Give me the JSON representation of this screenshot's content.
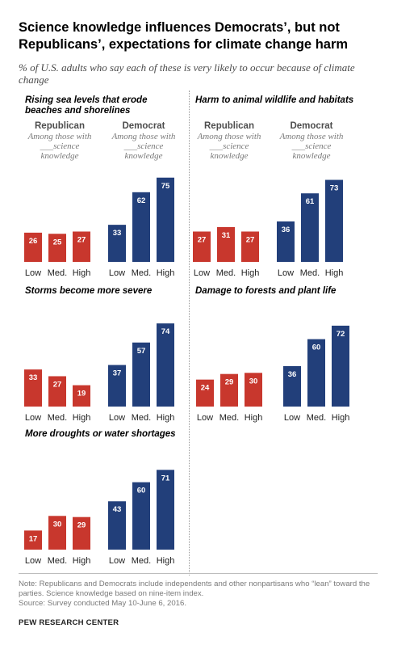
{
  "title": "Science knowledge influences Democrats’, but not Republicans’, expectations for climate change harm",
  "subtitle": "% of U.S. adults who say each of these is very likely to occur because of climate change",
  "group_labels": {
    "republican": "Republican",
    "democrat": "Democrat",
    "sub_text": "Among those with ___science knowledge"
  },
  "colors": {
    "republican": "#c8372d",
    "democrat": "#223f7a"
  },
  "note": "Note: Republicans and Democrats include independents and other nonpartisans who “lean” toward the parties. Science knowledge based on nine-item index.",
  "source": "Source: Survey conducted May 10-June 6, 2016.",
  "brand": "PEW RESEARCH CENTER",
  "chart_data": [
    {
      "type": "bar",
      "title": "Rising sea levels that erode beaches and shorelines",
      "categories": [
        "Low",
        "Med.",
        "High"
      ],
      "series": [
        {
          "name": "Republican",
          "values": [
            26,
            25,
            27
          ]
        },
        {
          "name": "Democrat",
          "values": [
            33,
            62,
            75
          ]
        }
      ]
    },
    {
      "type": "bar",
      "title": "Harm to animal wildlife and habitats",
      "categories": [
        "Low",
        "Med.",
        "High"
      ],
      "series": [
        {
          "name": "Republican",
          "values": [
            27,
            31,
            27
          ]
        },
        {
          "name": "Democrat",
          "values": [
            36,
            61,
            73
          ]
        }
      ]
    },
    {
      "type": "bar",
      "title": "Storms become more severe",
      "categories": [
        "Low",
        "Med.",
        "High"
      ],
      "series": [
        {
          "name": "Republican",
          "values": [
            33,
            27,
            19
          ]
        },
        {
          "name": "Democrat",
          "values": [
            37,
            57,
            74
          ]
        }
      ]
    },
    {
      "type": "bar",
      "title": "Damage to forests and plant life",
      "categories": [
        "Low",
        "Med.",
        "High"
      ],
      "series": [
        {
          "name": "Republican",
          "values": [
            24,
            29,
            30
          ]
        },
        {
          "name": "Democrat",
          "values": [
            36,
            60,
            72
          ]
        }
      ]
    },
    {
      "type": "bar",
      "title": "More droughts or water shortages",
      "categories": [
        "Low",
        "Med.",
        "High"
      ],
      "series": [
        {
          "name": "Republican",
          "values": [
            17,
            30,
            29
          ]
        },
        {
          "name": "Democrat",
          "values": [
            43,
            60,
            71
          ]
        }
      ]
    }
  ]
}
